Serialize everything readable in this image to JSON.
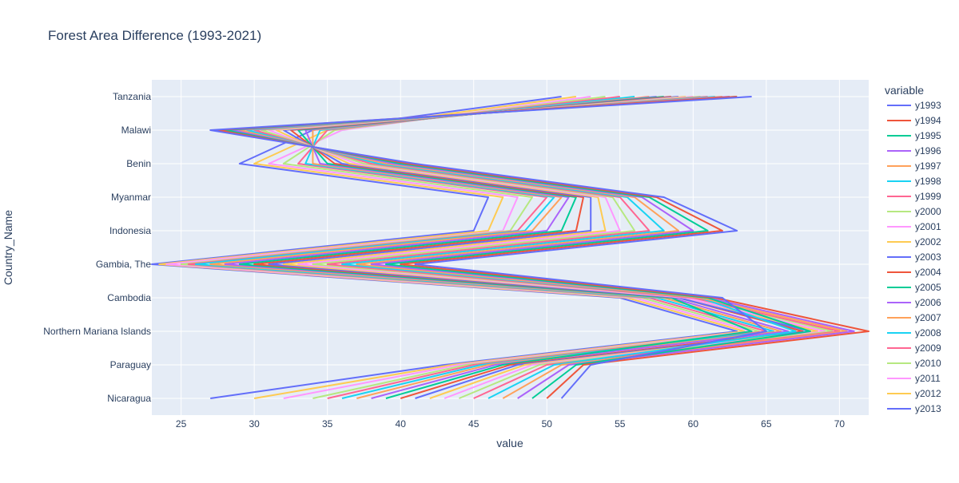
{
  "chart_data": {
    "type": "line",
    "title": "Forest Area Difference (1993-2021)",
    "xlabel": "value",
    "ylabel": "Country_Name",
    "legend_title": "variable",
    "xlim": [
      23,
      72
    ],
    "x_ticks": [
      25,
      30,
      35,
      40,
      45,
      50,
      55,
      60,
      65,
      70
    ],
    "grid": true,
    "legend_position": "right",
    "categories": [
      "Tanzania",
      "Malawi",
      "Benin",
      "Myanmar",
      "Indonesia",
      "Gambia, The",
      "Cambodia",
      "Northern Mariana Islands",
      "Paraguay",
      "Nicaragua"
    ],
    "series": [
      {
        "name": "y1993",
        "color": "#636efa",
        "values": [
          64.0,
          27.0,
          41.0,
          58.0,
          63.0,
          41.0,
          62.0,
          65.0,
          53.0,
          51.0
        ]
      },
      {
        "name": "y1994",
        "color": "#EF553B",
        "values": [
          63.0,
          27.5,
          40.5,
          57.5,
          62.0,
          40.0,
          61.5,
          72.0,
          52.5,
          50.0
        ]
      },
      {
        "name": "y1995",
        "color": "#00cc96",
        "values": [
          63.0,
          28.0,
          40.0,
          57.0,
          61.0,
          39.0,
          61.0,
          68.0,
          52.0,
          49.0
        ]
      },
      {
        "name": "y1996",
        "color": "#ab63fa",
        "values": [
          62.5,
          28.5,
          39.5,
          56.5,
          60.0,
          38.0,
          61.0,
          71.0,
          51.5,
          48.0
        ]
      },
      {
        "name": "y1997",
        "color": "#FFA15A",
        "values": [
          62.0,
          29.0,
          39.0,
          56.0,
          59.0,
          37.0,
          60.5,
          70.5,
          51.0,
          47.0
        ]
      },
      {
        "name": "y1998",
        "color": "#19d3f3",
        "values": [
          61.5,
          29.5,
          38.5,
          55.5,
          58.0,
          36.0,
          60.5,
          67.0,
          50.5,
          46.0
        ]
      },
      {
        "name": "y1999",
        "color": "#FF6692",
        "values": [
          61.0,
          30.0,
          38.0,
          55.0,
          57.0,
          35.0,
          60.0,
          70.0,
          50.0,
          45.0
        ]
      },
      {
        "name": "y2000",
        "color": "#B6E880",
        "values": [
          60.5,
          30.5,
          37.5,
          54.5,
          56.0,
          34.0,
          60.0,
          69.5,
          49.5,
          44.0
        ]
      },
      {
        "name": "y2001",
        "color": "#FF97FF",
        "values": [
          60.0,
          31.0,
          37.0,
          54.0,
          55.0,
          33.0,
          59.5,
          69.0,
          49.0,
          43.0
        ]
      },
      {
        "name": "y2002",
        "color": "#FECB52",
        "values": [
          59.5,
          31.5,
          36.5,
          53.5,
          54.0,
          32.0,
          59.5,
          68.5,
          48.5,
          42.0
        ]
      },
      {
        "name": "y2003",
        "color": "#636efa",
        "values": [
          59.0,
          32.0,
          36.0,
          53.0,
          53.0,
          31.0,
          59.0,
          68.0,
          48.0,
          41.0
        ]
      },
      {
        "name": "y2004",
        "color": "#EF553B",
        "values": [
          58.5,
          32.5,
          35.5,
          52.5,
          52.0,
          30.0,
          59.0,
          67.5,
          47.5,
          40.0
        ]
      },
      {
        "name": "y2005",
        "color": "#00cc96",
        "values": [
          58.0,
          33.0,
          35.0,
          52.0,
          51.0,
          29.0,
          58.5,
          64.0,
          47.0,
          39.0
        ]
      },
      {
        "name": "y2006",
        "color": "#ab63fa",
        "values": [
          57.5,
          33.5,
          34.5,
          51.5,
          50.0,
          28.0,
          58.5,
          66.5,
          46.5,
          38.0
        ]
      },
      {
        "name": "y2007",
        "color": "#FFA15A",
        "values": [
          57.0,
          34.0,
          34.0,
          51.0,
          49.0,
          27.0,
          58.0,
          66.0,
          46.0,
          37.0
        ]
      },
      {
        "name": "y2008",
        "color": "#19d3f3",
        "values": [
          56.0,
          34.5,
          33.5,
          50.5,
          48.5,
          26.0,
          57.5,
          65.5,
          45.5,
          36.0
        ]
      },
      {
        "name": "y2009",
        "color": "#FF6692",
        "values": [
          55.0,
          35.0,
          33.0,
          50.0,
          48.0,
          25.5,
          57.0,
          65.0,
          45.0,
          35.0
        ]
      },
      {
        "name": "y2010",
        "color": "#B6E880",
        "values": [
          54.0,
          35.5,
          32.0,
          49.0,
          47.5,
          25.0,
          56.5,
          64.5,
          44.5,
          34.0
        ]
      },
      {
        "name": "y2011",
        "color": "#FF97FF",
        "values": [
          53.0,
          36.0,
          31.0,
          48.0,
          47.0,
          24.0,
          56.0,
          64.0,
          44.0,
          32.0
        ]
      },
      {
        "name": "y2012",
        "color": "#FECB52",
        "values": [
          52.0,
          35.0,
          30.0,
          47.0,
          46.0,
          23.5,
          55.5,
          63.5,
          43.5,
          30.0
        ]
      },
      {
        "name": "y2013",
        "color": "#636efa",
        "values": [
          51.0,
          34.0,
          29.0,
          46.0,
          45.0,
          23.0,
          55.0,
          63.0,
          43.0,
          27.0
        ]
      }
    ]
  }
}
